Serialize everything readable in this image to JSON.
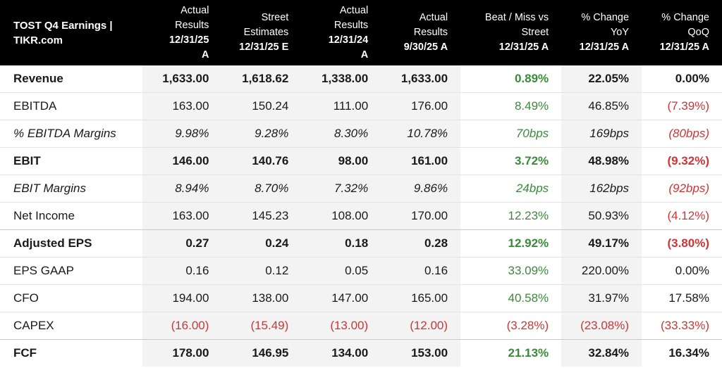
{
  "header": {
    "title_line1": "TOST Q4 Earnings |",
    "title_line2": "TIKR.com",
    "columns": [
      {
        "l1": "Actual",
        "l2": "Results",
        "l3": "12/31/25",
        "l4": "A"
      },
      {
        "l1": "",
        "l2": "Street",
        "l3": "Estimates",
        "l4": "12/31/25 E"
      },
      {
        "l1": "Actual",
        "l2": "Results",
        "l3": "12/31/24",
        "l4": "A"
      },
      {
        "l1": "",
        "l2": "Actual",
        "l3": "Results",
        "l4": "9/30/25 A"
      },
      {
        "l1": "",
        "l2": "Beat / Miss vs",
        "l3": "Street",
        "l4": "12/31/25 A"
      },
      {
        "l1": "",
        "l2": "% Change",
        "l3": "YoY",
        "l4": "12/31/25 A"
      },
      {
        "l1": "",
        "l2": "% Change",
        "l3": "QoQ",
        "l4": "12/31/25 A"
      }
    ]
  },
  "rows": [
    {
      "label": "Revenue",
      "v": [
        "1,633.00",
        "1,618.62",
        "1,338.00",
        "1,633.00",
        "0.89%",
        "22.05%",
        "0.00%"
      ]
    },
    {
      "label": "EBITDA",
      "v": [
        "163.00",
        "150.24",
        "111.00",
        "176.00",
        "8.49%",
        "46.85%",
        "(7.39%)"
      ]
    },
    {
      "label": "% EBITDA Margins",
      "v": [
        "9.98%",
        "9.28%",
        "8.30%",
        "10.78%",
        "70bps",
        "169bps",
        "(80bps)"
      ]
    },
    {
      "label": "EBIT",
      "v": [
        "146.00",
        "140.76",
        "98.00",
        "161.00",
        "3.72%",
        "48.98%",
        "(9.32%)"
      ]
    },
    {
      "label": "EBIT Margins",
      "v": [
        "8.94%",
        "8.70%",
        "7.32%",
        "9.86%",
        "24bps",
        "162bps",
        "(92bps)"
      ]
    },
    {
      "label": "Net Income",
      "v": [
        "163.00",
        "145.23",
        "108.00",
        "170.00",
        "12.23%",
        "50.93%",
        "(4.12%)"
      ]
    },
    {
      "label": "Adjusted EPS",
      "v": [
        "0.27",
        "0.24",
        "0.18",
        "0.28",
        "12.92%",
        "49.17%",
        "(3.80%)"
      ]
    },
    {
      "label": "EPS GAAP",
      "v": [
        "0.16",
        "0.12",
        "0.05",
        "0.16",
        "33.09%",
        "220.00%",
        "0.00%"
      ]
    },
    {
      "label": "CFO",
      "v": [
        "194.00",
        "138.00",
        "147.00",
        "165.00",
        "40.58%",
        "31.97%",
        "17.58%"
      ]
    },
    {
      "label": "CAPEX",
      "v": [
        "(16.00)",
        "(15.49)",
        "(13.00)",
        "(12.00)",
        "(3.28%)",
        "(23.08%)",
        "(33.33%)"
      ]
    },
    {
      "label": "FCF",
      "v": [
        "178.00",
        "146.95",
        "134.00",
        "153.00",
        "21.13%",
        "32.84%",
        "16.34%"
      ]
    }
  ],
  "colors": {
    "positive": "#3b8a3b",
    "negative": "#cf3535",
    "header_bg": "#000000",
    "shade": "#f3f3f3"
  }
}
